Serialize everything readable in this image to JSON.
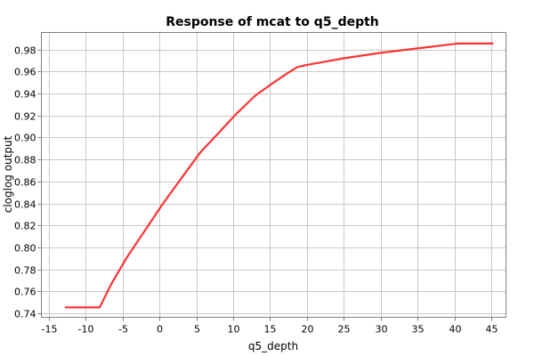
{
  "chart_data": {
    "type": "line",
    "title": "Response of mcat to q5_depth",
    "xlabel": "q5_depth",
    "ylabel": "cloglog output",
    "xlim": [
      -16,
      47
    ],
    "ylim": [
      0.7365,
      0.9955
    ],
    "xticks": [
      -15,
      -10,
      -5,
      0,
      5,
      10,
      15,
      20,
      25,
      30,
      35,
      40,
      45
    ],
    "yticks": [
      0.74,
      0.76,
      0.78,
      0.8,
      0.82,
      0.84,
      0.86,
      0.88,
      0.9,
      0.92,
      0.94,
      0.96,
      0.98
    ],
    "xtick_labels": [
      "-15",
      "-10",
      "-5",
      "0",
      "5",
      "10",
      "15",
      "20",
      "25",
      "30",
      "35",
      "40",
      "45"
    ],
    "ytick_labels": [
      "0.74",
      "0.76",
      "0.78",
      "0.80",
      "0.82",
      "0.84",
      "0.86",
      "0.88",
      "0.90",
      "0.92",
      "0.94",
      "0.96",
      "0.98"
    ],
    "grid": true,
    "line_color": "#ff3333",
    "series": [
      {
        "x": [
          -12.7,
          -8.1,
          -6.5,
          -4.5,
          -2.0,
          0.5,
          3.0,
          5.5,
          8.0,
          10.5,
          13.0,
          15.5,
          17.5,
          18.7,
          20.0,
          25.0,
          30.0,
          35.0,
          40.5,
          45.2
        ],
        "y": [
          0.7455,
          0.7455,
          0.767,
          0.79,
          0.815,
          0.84,
          0.863,
          0.886,
          0.904,
          0.922,
          0.938,
          0.95,
          0.959,
          0.964,
          0.966,
          0.972,
          0.977,
          0.981,
          0.9855,
          0.9855
        ]
      }
    ]
  }
}
